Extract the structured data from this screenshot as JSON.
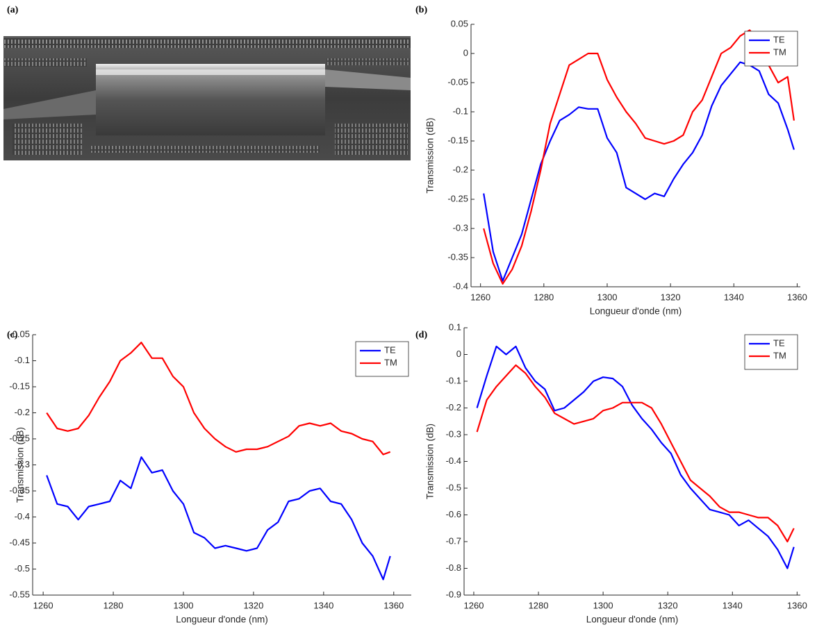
{
  "panel_a": {
    "label": "(a)"
  },
  "chart_data": [
    {
      "type": "line",
      "panel_label": "(b)",
      "xlabel": "Longueur d'onde (nm)",
      "ylabel": "Transmission (dB)",
      "x": [
        1261,
        1264,
        1267,
        1270,
        1273,
        1276,
        1279,
        1282,
        1285,
        1288,
        1291,
        1294,
        1297,
        1300,
        1303,
        1306,
        1309,
        1312,
        1315,
        1318,
        1321,
        1324,
        1327,
        1330,
        1333,
        1336,
        1339,
        1342,
        1345,
        1348,
        1351,
        1354,
        1357,
        1359
      ],
      "series": [
        {
          "name": "TE",
          "color": "#0000ff",
          "values": [
            -0.24,
            -0.34,
            -0.39,
            -0.35,
            -0.31,
            -0.25,
            -0.19,
            -0.15,
            -0.115,
            -0.105,
            -0.092,
            -0.095,
            -0.095,
            -0.145,
            -0.17,
            -0.23,
            -0.24,
            -0.25,
            -0.24,
            -0.245,
            -0.215,
            -0.19,
            -0.17,
            -0.14,
            -0.09,
            -0.055,
            -0.035,
            -0.015,
            -0.02,
            -0.03,
            -0.07,
            -0.085,
            -0.13,
            -0.165
          ]
        },
        {
          "name": "TM",
          "color": "#ff0000",
          "values": [
            -0.3,
            -0.36,
            -0.395,
            -0.37,
            -0.33,
            -0.27,
            -0.2,
            -0.12,
            -0.07,
            -0.02,
            -0.01,
            0.0,
            0.0,
            -0.045,
            -0.075,
            -0.1,
            -0.12,
            -0.145,
            -0.15,
            -0.155,
            -0.15,
            -0.14,
            -0.1,
            -0.08,
            -0.04,
            0.0,
            0.01,
            0.03,
            0.04,
            0.02,
            -0.02,
            -0.05,
            -0.04,
            -0.115
          ]
        }
      ],
      "xlim": [
        1257,
        1361
      ],
      "xticks": [
        1260,
        1280,
        1300,
        1320,
        1340,
        1360
      ],
      "ylim": [
        -0.4,
        0.05
      ],
      "yticks": [
        -0.4,
        -0.35,
        -0.3,
        -0.25,
        -0.2,
        -0.15,
        -0.1,
        -0.05,
        0,
        0.05
      ],
      "grid": false,
      "legend": "upper right"
    },
    {
      "type": "line",
      "panel_label": "(c)",
      "xlabel": "Longueur d'onde (nm)",
      "ylabel": "Transmission (dB)",
      "x": [
        1261,
        1264,
        1267,
        1270,
        1273,
        1276,
        1279,
        1282,
        1285,
        1288,
        1291,
        1294,
        1297,
        1300,
        1303,
        1306,
        1309,
        1312,
        1315,
        1318,
        1321,
        1324,
        1327,
        1330,
        1333,
        1336,
        1339,
        1342,
        1345,
        1348,
        1351,
        1354,
        1357,
        1359
      ],
      "series": [
        {
          "name": "TE",
          "color": "#0000ff",
          "values": [
            -0.32,
            -0.375,
            -0.38,
            -0.405,
            -0.38,
            -0.375,
            -0.37,
            -0.33,
            -0.345,
            -0.285,
            -0.315,
            -0.31,
            -0.35,
            -0.375,
            -0.43,
            -0.44,
            -0.46,
            -0.455,
            -0.46,
            -0.465,
            -0.46,
            -0.425,
            -0.41,
            -0.37,
            -0.365,
            -0.35,
            -0.345,
            -0.37,
            -0.375,
            -0.405,
            -0.45,
            -0.475,
            -0.52,
            -0.475
          ]
        },
        {
          "name": "TM",
          "color": "#ff0000",
          "values": [
            -0.2,
            -0.23,
            -0.235,
            -0.23,
            -0.205,
            -0.17,
            -0.14,
            -0.1,
            -0.085,
            -0.065,
            -0.095,
            -0.095,
            -0.13,
            -0.15,
            -0.2,
            -0.23,
            -0.25,
            -0.265,
            -0.275,
            -0.27,
            -0.27,
            -0.265,
            -0.255,
            -0.245,
            -0.225,
            -0.22,
            -0.225,
            -0.22,
            -0.235,
            -0.24,
            -0.25,
            -0.255,
            -0.28,
            -0.275
          ]
        }
      ],
      "xlim": [
        1257,
        1365
      ],
      "xticks": [
        1260,
        1280,
        1300,
        1320,
        1340,
        1360
      ],
      "ylim": [
        -0.55,
        -0.05
      ],
      "yticks": [
        -0.55,
        -0.5,
        -0.45,
        -0.4,
        -0.35,
        -0.3,
        -0.25,
        -0.2,
        -0.15,
        -0.1,
        -0.05
      ],
      "grid": false,
      "legend": "upper right"
    },
    {
      "type": "line",
      "panel_label": "(d)",
      "xlabel": "Longueur d'onde (nm)",
      "ylabel": "Transmission (dB)",
      "x": [
        1261,
        1264,
        1267,
        1270,
        1273,
        1276,
        1279,
        1282,
        1285,
        1288,
        1291,
        1294,
        1297,
        1300,
        1303,
        1306,
        1309,
        1312,
        1315,
        1318,
        1321,
        1324,
        1327,
        1330,
        1333,
        1336,
        1339,
        1342,
        1345,
        1348,
        1351,
        1354,
        1357,
        1359
      ],
      "series": [
        {
          "name": "TE",
          "color": "#0000ff",
          "values": [
            -0.2,
            -0.08,
            0.03,
            0.0,
            0.03,
            -0.05,
            -0.1,
            -0.13,
            -0.21,
            -0.2,
            -0.17,
            -0.14,
            -0.1,
            -0.085,
            -0.09,
            -0.12,
            -0.19,
            -0.24,
            -0.28,
            -0.33,
            -0.37,
            -0.45,
            -0.5,
            -0.54,
            -0.58,
            -0.59,
            -0.6,
            -0.64,
            -0.62,
            -0.65,
            -0.68,
            -0.73,
            -0.8,
            -0.72
          ]
        },
        {
          "name": "TM",
          "color": "#ff0000",
          "values": [
            -0.29,
            -0.17,
            -0.12,
            -0.08,
            -0.04,
            -0.07,
            -0.12,
            -0.16,
            -0.22,
            -0.24,
            -0.26,
            -0.25,
            -0.24,
            -0.21,
            -0.2,
            -0.18,
            -0.18,
            -0.18,
            -0.2,
            -0.26,
            -0.33,
            -0.4,
            -0.47,
            -0.5,
            -0.53,
            -0.57,
            -0.59,
            -0.59,
            -0.6,
            -0.61,
            -0.61,
            -0.64,
            -0.7,
            -0.65
          ]
        }
      ],
      "xlim": [
        1257,
        1361
      ],
      "xticks": [
        1260,
        1280,
        1300,
        1320,
        1340,
        1360
      ],
      "ylim": [
        -0.9,
        0.1
      ],
      "yticks": [
        -0.9,
        -0.8,
        -0.7,
        -0.6,
        -0.5,
        -0.4,
        -0.3,
        -0.2,
        -0.1,
        0,
        0.1
      ],
      "grid": false,
      "legend": "upper right"
    }
  ]
}
